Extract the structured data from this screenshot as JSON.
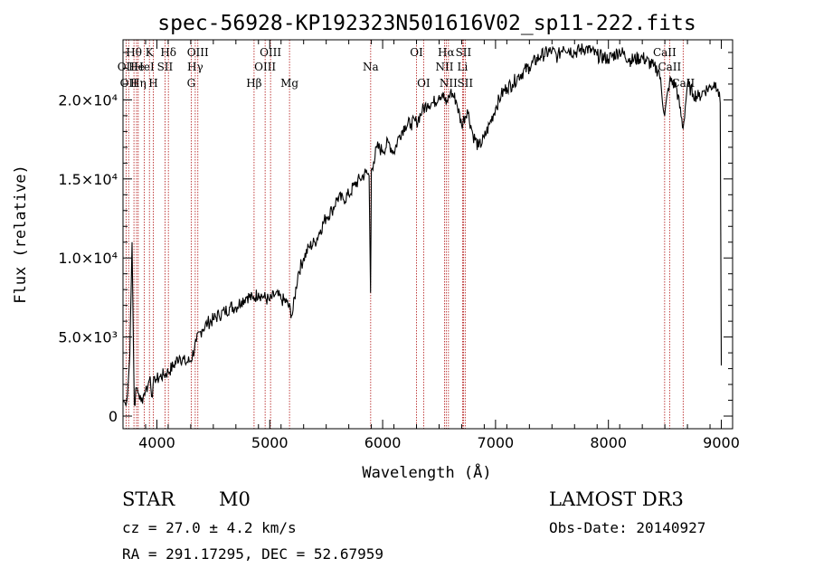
{
  "chart_data": {
    "type": "line",
    "title": "spec-56928-KP192323N501616V02_sp11-222.fits",
    "xlabel": "Wavelength (Å)",
    "ylabel": "Flux (relative)",
    "xlim": [
      3700,
      9100
    ],
    "ylim": [
      -800,
      23800
    ],
    "grid": false,
    "x_ticks": [
      {
        "value": 4000,
        "label": "4000"
      },
      {
        "value": 5000,
        "label": "5000"
      },
      {
        "value": 6000,
        "label": "6000"
      },
      {
        "value": 7000,
        "label": "7000"
      },
      {
        "value": 8000,
        "label": "8000"
      },
      {
        "value": 9000,
        "label": "9000"
      }
    ],
    "y_ticks": [
      {
        "value": 0,
        "label": "0"
      },
      {
        "value": 5000,
        "label": "5.0×10³"
      },
      {
        "value": 10000,
        "label": "1.0×10⁴"
      },
      {
        "value": 15000,
        "label": "1.5×10⁴"
      },
      {
        "value": 20000,
        "label": "2.0×10⁴"
      }
    ],
    "series": [
      {
        "name": "flux",
        "x": [
          3700,
          3720,
          3740,
          3760,
          3780,
          3800,
          3820,
          3840,
          3860,
          3880,
          3900,
          3920,
          3940,
          3960,
          3980,
          4000,
          4030,
          4060,
          4100,
          4150,
          4200,
          4250,
          4300,
          4350,
          4400,
          4450,
          4500,
          4550,
          4600,
          4650,
          4700,
          4750,
          4800,
          4850,
          4900,
          4950,
          5000,
          5050,
          5100,
          5150,
          5200,
          5250,
          5300,
          5350,
          5400,
          5450,
          5500,
          5550,
          5600,
          5650,
          5700,
          5750,
          5800,
          5850,
          5880,
          5893,
          5900,
          5920,
          5950,
          6000,
          6050,
          6100,
          6150,
          6200,
          6250,
          6300,
          6350,
          6400,
          6450,
          6500,
          6530,
          6563,
          6600,
          6650,
          6700,
          6750,
          6800,
          6850,
          6900,
          6950,
          7000,
          7050,
          7100,
          7150,
          7200,
          7300,
          7400,
          7500,
          7550,
          7600,
          7700,
          7800,
          7900,
          8000,
          8100,
          8200,
          8300,
          8400,
          8450,
          8498,
          8542,
          8600,
          8662,
          8700,
          8750,
          8800,
          8850,
          8900,
          8950,
          8970,
          8990,
          9000
        ],
        "y": [
          1000,
          800,
          1400,
          3800,
          11000,
          700,
          1800,
          1400,
          900,
          1300,
          1700,
          1900,
          2500,
          1200,
          2500,
          2300,
          2500,
          2600,
          2800,
          3200,
          3800,
          3400,
          3500,
          4700,
          5500,
          5900,
          6100,
          6400,
          6600,
          6900,
          6900,
          7300,
          7600,
          7400,
          7800,
          7500,
          7300,
          7700,
          7400,
          7200,
          6400,
          9000,
          10000,
          10700,
          11000,
          11800,
          12600,
          13000,
          13800,
          13700,
          14000,
          14600,
          15000,
          15400,
          15200,
          7800,
          15600,
          16100,
          17000,
          16800,
          17300,
          16700,
          17800,
          18400,
          18500,
          18600,
          19300,
          19800,
          19800,
          20300,
          20400,
          19700,
          20500,
          20000,
          18400,
          19400,
          17800,
          17000,
          17600,
          18500,
          19500,
          20300,
          20800,
          21000,
          21500,
          22100,
          22800,
          23100,
          22700,
          23400,
          23000,
          23300,
          22800,
          22600,
          23100,
          22500,
          22700,
          22100,
          21800,
          19000,
          21200,
          20900,
          18200,
          21000,
          20400,
          20200,
          20600,
          20800,
          21100,
          20700,
          19800,
          3200
        ]
      }
    ],
    "lines": [
      {
        "wavelength": 3727,
        "label": "OII",
        "row": 2
      },
      {
        "wavelength": 3750,
        "label": "OII",
        "row": 3
      },
      {
        "wavelength": 3797,
        "label": "Hθ",
        "row": 1
      },
      {
        "wavelength": 3820,
        "label": "He",
        "row": 2
      },
      {
        "wavelength": 3835,
        "label": "Hη",
        "row": 3
      },
      {
        "wavelength": 3889,
        "label": "HeI",
        "row": 2
      },
      {
        "wavelength": 3934,
        "label": "K",
        "row": 1
      },
      {
        "wavelength": 3968,
        "label": "H",
        "row": 3
      },
      {
        "wavelength": 4072,
        "label": "SII",
        "row": 2
      },
      {
        "wavelength": 4102,
        "label": "Hδ",
        "row": 1
      },
      {
        "wavelength": 4304,
        "label": "G",
        "row": 3
      },
      {
        "wavelength": 4340,
        "label": "Hγ",
        "row": 2
      },
      {
        "wavelength": 4363,
        "label": "OIII",
        "row": 1
      },
      {
        "wavelength": 4861,
        "label": "Hβ",
        "row": 3
      },
      {
        "wavelength": 4959,
        "label": "OIII",
        "row": 2
      },
      {
        "wavelength": 5007,
        "label": "OIII",
        "row": 1
      },
      {
        "wavelength": 5175,
        "label": "Mg",
        "row": 3
      },
      {
        "wavelength": 5894,
        "label": "Na",
        "row": 2
      },
      {
        "wavelength": 6300,
        "label": "OI",
        "row": 1
      },
      {
        "wavelength": 6363,
        "label": "OI",
        "row": 3
      },
      {
        "wavelength": 6548,
        "label": "NII",
        "row": 2
      },
      {
        "wavelength": 6563,
        "label": "Hα",
        "row": 1
      },
      {
        "wavelength": 6583,
        "label": "NII",
        "row": 3
      },
      {
        "wavelength": 6708,
        "label": "Li",
        "row": 2
      },
      {
        "wavelength": 6716,
        "label": "SII",
        "row": 1
      },
      {
        "wavelength": 6731,
        "label": "SII",
        "row": 3
      },
      {
        "wavelength": 8498,
        "label": "CaII",
        "row": 1
      },
      {
        "wavelength": 8542,
        "label": "CaII",
        "row": 2
      },
      {
        "wavelength": 8662,
        "label": "CaII",
        "row": 3
      }
    ]
  },
  "info": {
    "class": "STAR",
    "subclass": "M0",
    "survey": "LAMOST DR3",
    "redshift": "cz = 27.0 ± 4.2 km/s",
    "obs_date": "Obs-Date: 20140927",
    "coords": "RA = 291.17295, DEC =  52.67959"
  },
  "colors": {
    "spectrum": "#000000",
    "line_markers": "#b01010",
    "axis": "#000000"
  }
}
